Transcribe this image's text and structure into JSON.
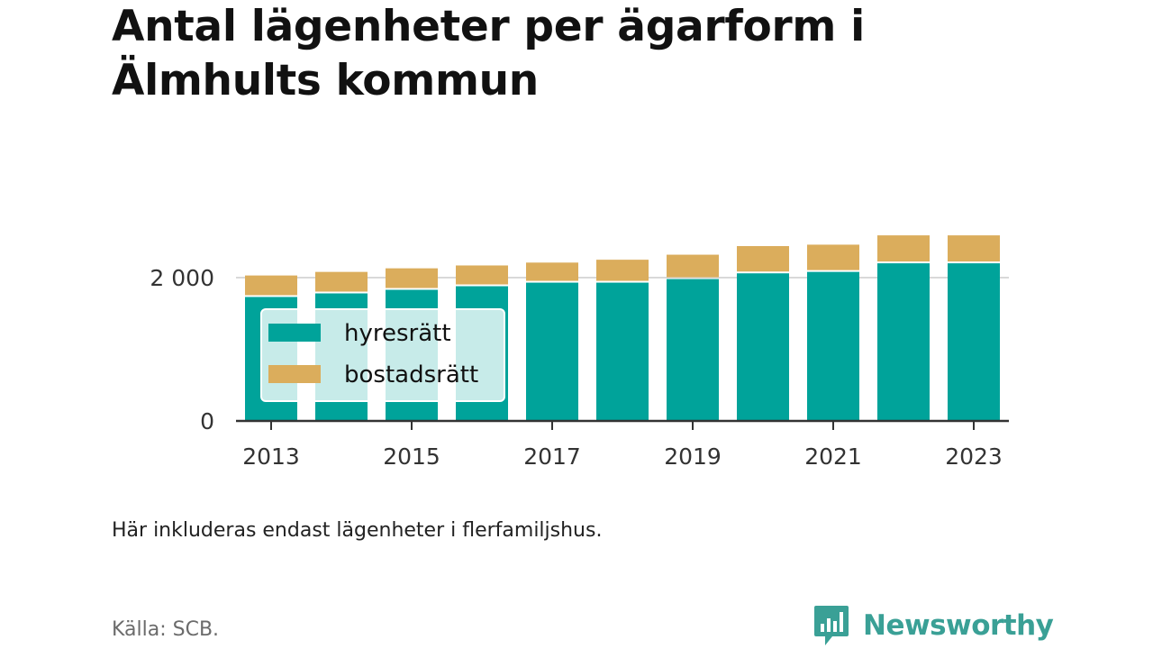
{
  "title": "Antal lägenheter per ägarform i Älmhults kommun",
  "note": "Här inkluderas endast lägenheter i flerfamiljshus.",
  "source": "Källa: SCB.",
  "logo": {
    "text": "Newsworthy",
    "icon": "newsworthy-bar-chart-icon",
    "color": "#3aa096"
  },
  "chart_data": {
    "type": "bar",
    "stacked": true,
    "categories": [
      "2013",
      "2014",
      "2015",
      "2016",
      "2017",
      "2018",
      "2019",
      "2020",
      "2021",
      "2022",
      "2023"
    ],
    "series": [
      {
        "name": "hyresrätt",
        "color": "#00a39a",
        "values": [
          1730,
          1780,
          1830,
          1880,
          1930,
          1930,
          1980,
          2060,
          2080,
          2200,
          2200
        ]
      },
      {
        "name": "bostadsrätt",
        "color": "#dbad5c",
        "values": [
          300,
          300,
          300,
          290,
          280,
          320,
          340,
          380,
          380,
          390,
          390
        ]
      }
    ],
    "xticks": [
      "2013",
      "2015",
      "2017",
      "2019",
      "2021",
      "2023"
    ],
    "yticks": [
      0,
      2000
    ],
    "ytick_labels": [
      "0",
      "2 000"
    ],
    "ylim": [
      0,
      2600
    ],
    "grid": "horizontal",
    "legend": {
      "position": "inside-left"
    }
  }
}
